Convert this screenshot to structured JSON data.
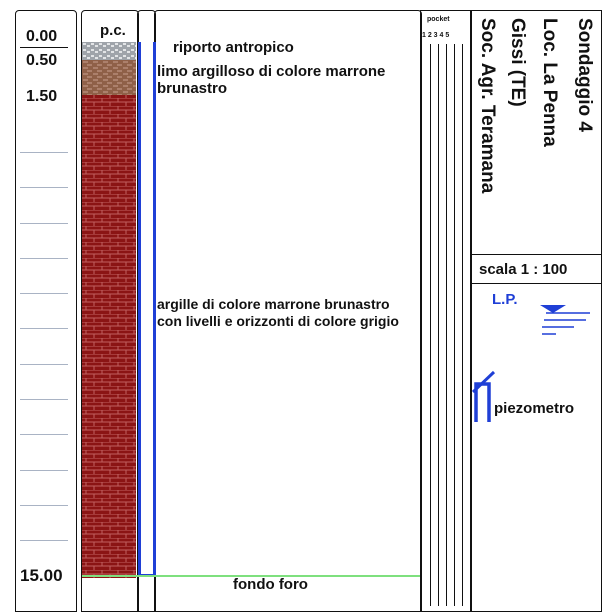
{
  "header": {
    "pc_label": "p.c.",
    "pocket_label": "pocket",
    "pocket_numbers": "1 2 3 4 5"
  },
  "depths": {
    "d0": "0.00",
    "d1": "0.50",
    "d2": "1.50",
    "d_end": "15.00"
  },
  "layers": {
    "l1": "riporto antropico",
    "l2_line1": "limo argilloso di colore marrone",
    "l2_line2": "brunastro",
    "l3_line1": "argille di colore marrone brunastro",
    "l3_line2": "con livelli e orizzonti di colore grigio",
    "end": "fondo foro"
  },
  "info": {
    "title1": "Sondaggio 4",
    "title2": "Loc. La Penna",
    "title3": "Gissi (TE)",
    "title4": "Soc. Agr. Teramana",
    "scale": "scala 1 : 100",
    "legend_lp": "L.P.",
    "legend_piezo": "piezometro"
  },
  "colors": {
    "brick": "#8b1414",
    "mortar": "#c06060",
    "piezometer": "#1f3fd6",
    "water": "#1f3fd6",
    "bottom_line": "#7ee07e"
  }
}
